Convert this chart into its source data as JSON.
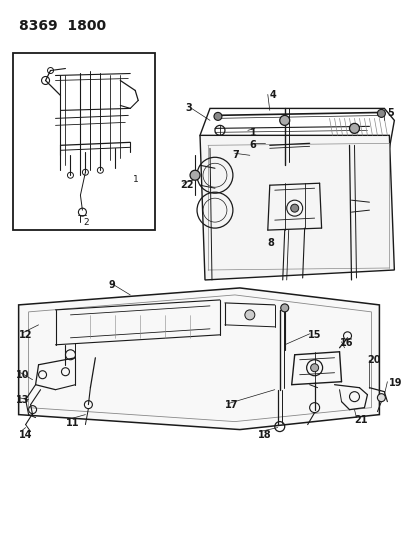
{
  "title": "8369 1800",
  "bg_color": "#ffffff",
  "line_color": "#1a1a1a",
  "gray_color": "#888888",
  "title_fontsize": 10,
  "label_fontsize": 7,
  "figsize": [
    4.1,
    5.33
  ],
  "dpi": 100
}
